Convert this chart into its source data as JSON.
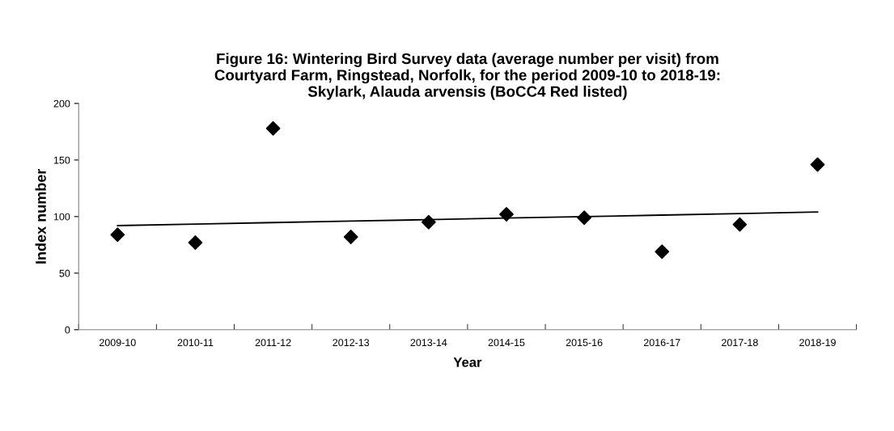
{
  "chart_data": {
    "type": "scatter",
    "title": "Figure 16: Wintering Bird Survey data (average number per visit) from\nCourtyard Farm, Ringstead, Norfolk, for the period 2009-10 to 2018-19:\nSkylark, Alauda arvensis (BoCC4 Red listed)",
    "xlabel": "Year",
    "ylabel": "Index number",
    "categories": [
      "2009-10",
      "2010-11",
      "2011-12",
      "2012-13",
      "2013-14",
      "2014-15",
      "2015-16",
      "2016-17",
      "2017-18",
      "2018-19"
    ],
    "series": [
      {
        "color": "#000000",
        "marker": "diamond",
        "values": [
          84,
          77,
          178,
          82,
          95,
          102,
          99,
          69,
          93,
          146
        ]
      },
      {
        "type": "line",
        "color": "#000000",
        "marker": "none",
        "line_style": "solid",
        "values": [
          92.0,
          93.3,
          94.7,
          96.0,
          97.3,
          98.7,
          100.0,
          101.3,
          102.7,
          104.0
        ]
      }
    ],
    "ylim": [
      0,
      200
    ],
    "yticks": [
      0,
      50,
      100,
      150,
      200
    ],
    "grid": false,
    "legend": false
  }
}
